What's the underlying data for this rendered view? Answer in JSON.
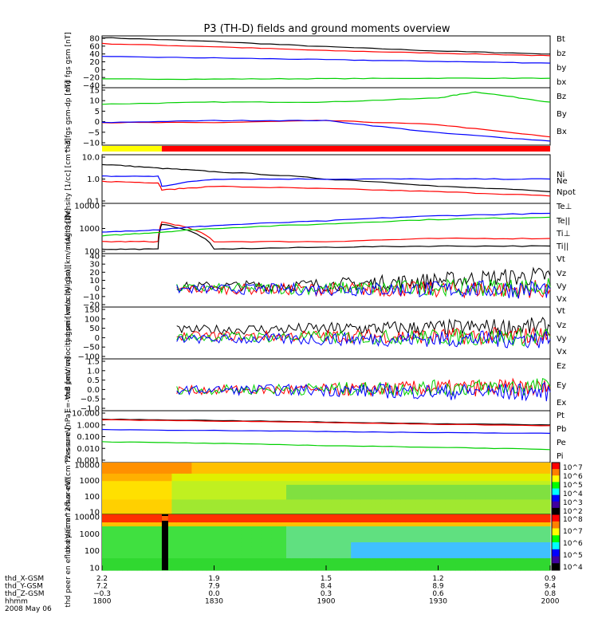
{
  "title": "P3 (TH-D) fields and ground moments overview",
  "colors": {
    "black": "#000000",
    "red": "#ff0000",
    "green": "#00d000",
    "blue": "#0000ff",
    "yellow": "#ffff00"
  },
  "chart_data": [
    {
      "type": "line",
      "title": "",
      "ylabel": "thd fgs gsm [nT]",
      "ylim": [
        -40,
        80
      ],
      "yticks": [
        "80",
        "60",
        "40",
        "20",
        "0",
        "−20",
        "−40"
      ],
      "yscale": "linear",
      "series": [
        {
          "name": "Bt",
          "color": "#000000",
          "x": [
            0,
            30,
            60,
            90,
            120
          ],
          "y": [
            76,
            67,
            55,
            45,
            38
          ]
        },
        {
          "name": "bz",
          "color": "#ff0000",
          "x": [
            0,
            30,
            60,
            90,
            120
          ],
          "y": [
            62,
            55,
            46,
            40,
            34
          ]
        },
        {
          "name": "by",
          "color": "#00d000",
          "x": [
            0,
            30,
            60,
            90,
            120
          ],
          "y": [
            -20,
            -20,
            -19,
            -18,
            -18
          ]
        },
        {
          "name": "bx",
          "color": "#0000ff",
          "x": [
            0,
            30,
            60,
            90,
            120
          ],
          "y": [
            32,
            29,
            25,
            21,
            17
          ]
        }
      ]
    },
    {
      "type": "line",
      "title": "",
      "ylabel": "thd fgs gsm-dp [nT]",
      "ylim": [
        -12,
        16
      ],
      "yticks": [
        "15",
        "10",
        "5",
        "0",
        "−5",
        "−10"
      ],
      "yscale": "linear",
      "series": [
        {
          "name": "Bz",
          "color": "#00d000",
          "x": [
            0,
            30,
            60,
            90,
            100,
            120
          ],
          "y": [
            8,
            9,
            9,
            11,
            14,
            9
          ]
        },
        {
          "name": "By",
          "color": "#ff0000",
          "x": [
            0,
            30,
            60,
            90,
            120
          ],
          "y": [
            -1,
            -1,
            0,
            -2,
            -8
          ]
        },
        {
          "name": "Bx",
          "color": "#0000ff",
          "x": [
            0,
            30,
            60,
            90,
            120
          ],
          "y": [
            -1,
            0,
            0,
            -6,
            -10
          ]
        }
      ]
    },
    {
      "type": "line",
      "title": "",
      "ylabel": "Density [1/cc] [cm^-3]",
      "ylim": [
        0.1,
        10
      ],
      "yticks": [
        "10.0",
        "1.0",
        "0.1"
      ],
      "yscale": "log",
      "series": [
        {
          "name": "Ne",
          "color": "#000000",
          "x": [
            0,
            15,
            30,
            60,
            90,
            120
          ],
          "y": [
            4,
            2.8,
            2.0,
            1.0,
            0.5,
            0.3
          ]
        },
        {
          "name": "Ni",
          "color": "#ff0000",
          "x": [
            0,
            15,
            16,
            30,
            60,
            90,
            120
          ],
          "y": [
            0.8,
            0.7,
            0.35,
            0.5,
            0.4,
            0.3,
            0.2
          ]
        },
        {
          "name": "Npot",
          "color": "#0000ff",
          "x": [
            0,
            15,
            16,
            30,
            60,
            90,
            120
          ],
          "y": [
            1.3,
            1.3,
            0.5,
            1.0,
            1.0,
            1.0,
            1.0
          ]
        }
      ]
    },
    {
      "type": "line",
      "title": "",
      "ylabel": "magt3 [eV]",
      "ylim": [
        100,
        10000
      ],
      "yticks": [
        "10000",
        "1000",
        "100"
      ],
      "yscale": "log",
      "series": [
        {
          "name": "Te⊥",
          "color": "#ff0000",
          "x": [
            0,
            15,
            16,
            30,
            60,
            90,
            120
          ],
          "y": [
            300,
            300,
            1800,
            300,
            300,
            400,
            400
          ]
        },
        {
          "name": "Te||",
          "color": "#000000",
          "x": [
            0,
            15,
            16,
            30,
            60,
            90,
            120
          ],
          "y": [
            150,
            150,
            1500,
            150,
            180,
            200,
            200
          ]
        },
        {
          "name": "Ti⊥",
          "color": "#0000ff",
          "x": [
            0,
            15,
            30,
            60,
            90,
            120
          ],
          "y": [
            700,
            900,
            1300,
            2000,
            3200,
            4000
          ]
        },
        {
          "name": "Ti||",
          "color": "#00d000",
          "x": [
            0,
            15,
            30,
            60,
            90,
            120
          ],
          "y": [
            500,
            700,
            1000,
            1500,
            2300,
            2800
          ]
        }
      ]
    },
    {
      "type": "line",
      "title": "",
      "ylabel": "thd peir velocity gsm [km/s (All Qs)]",
      "ylim": [
        -20,
        40
      ],
      "yticks": [
        "40",
        "30",
        "20",
        "10",
        "0",
        "−10",
        "−20"
      ],
      "yscale": "linear",
      "series": [
        {
          "name": "Vt",
          "color": "#000000",
          "x": [
            20,
            60,
            90,
            120
          ],
          "y": [
            3,
            5,
            10,
            15
          ]
        },
        {
          "name": "Vz",
          "color": "#ff0000",
          "x": [
            20,
            60,
            90,
            120
          ],
          "y": [
            0,
            0,
            0,
            0
          ]
        },
        {
          "name": "Vy",
          "color": "#00d000",
          "x": [
            20,
            60,
            90,
            120
          ],
          "y": [
            1,
            1,
            2,
            2
          ]
        },
        {
          "name": "Vx",
          "color": "#0000ff",
          "x": [
            20,
            60,
            90,
            120
          ],
          "y": [
            0,
            0,
            0,
            0
          ]
        }
      ]
    },
    {
      "type": "line",
      "title": "",
      "ylabel": "thd peer velocity gsm [km/s (All Qs)]",
      "ylim": [
        -100,
        150
      ],
      "yticks": [
        "150",
        "100",
        "50",
        "0",
        "−50",
        "−100"
      ],
      "yscale": "linear",
      "series": [
        {
          "name": "Vt",
          "color": "#000000",
          "x": [
            20,
            60,
            90,
            120
          ],
          "y": [
            40,
            45,
            50,
            55
          ]
        },
        {
          "name": "Vz",
          "color": "#ff0000",
          "x": [
            20,
            60,
            90,
            120
          ],
          "y": [
            10,
            10,
            10,
            10
          ]
        },
        {
          "name": "Vy",
          "color": "#00d000",
          "x": [
            20,
            60,
            90,
            120
          ],
          "y": [
            5,
            5,
            5,
            5
          ]
        },
        {
          "name": "Vx",
          "color": "#0000ff",
          "x": [
            20,
            60,
            90,
            120
          ],
          "y": [
            -5,
            -5,
            -5,
            -5
          ]
        }
      ]
    },
    {
      "type": "line",
      "title": "",
      "ylabel": "E=-VxB [mV/m]",
      "ylim": [
        -1.0,
        1.5
      ],
      "yticks": [
        "1.5",
        "1.0",
        "0.5",
        "0.0",
        "−0.5",
        "−1.0"
      ],
      "yscale": "linear",
      "series": [
        {
          "name": "Ez",
          "color": "#ff0000",
          "x": [
            20,
            60,
            90,
            120
          ],
          "y": [
            0,
            0,
            0.1,
            0.1
          ]
        },
        {
          "name": "Ey",
          "color": "#00d000",
          "x": [
            20,
            60,
            90,
            120
          ],
          "y": [
            0,
            0.05,
            0.1,
            0.15
          ]
        },
        {
          "name": "Ex",
          "color": "#0000ff",
          "x": [
            20,
            60,
            90,
            120
          ],
          "y": [
            0,
            0,
            -0.1,
            -0.1
          ]
        }
      ]
    },
    {
      "type": "line",
      "title": "",
      "ylabel": "Pressure [nPa]",
      "ylim": [
        0.001,
        10
      ],
      "yticks": [
        "10.000",
        "1.000",
        "0.100",
        "0.010",
        "0.001"
      ],
      "yscale": "log",
      "series": [
        {
          "name": "Pt",
          "color": "#000000",
          "x": [
            0,
            30,
            60,
            90,
            120
          ],
          "y": [
            2.2,
            1.8,
            1.3,
            1.0,
            0.8
          ]
        },
        {
          "name": "Pb",
          "color": "#ff0000",
          "x": [
            0,
            30,
            60,
            90,
            120
          ],
          "y": [
            2.0,
            1.6,
            1.2,
            0.9,
            0.7
          ]
        },
        {
          "name": "Pe",
          "color": "#00d000",
          "x": [
            0,
            30,
            60,
            90,
            120
          ],
          "y": [
            0.04,
            0.03,
            0.02,
            0.015,
            0.01
          ]
        },
        {
          "name": "Pi",
          "color": "#0000ff",
          "x": [
            0,
            30,
            60,
            90,
            120
          ],
          "y": [
            0.35,
            0.3,
            0.25,
            0.2,
            0.18
          ]
        }
      ]
    },
    {
      "type": "heatmap",
      "title": "",
      "ylabel": "thd peir en eflux eV/(cm^2-s-sr-eV)",
      "ylim": [
        5,
        20000
      ],
      "yticks": [
        "10000",
        "1000",
        "100",
        "10"
      ],
      "yscale": "log",
      "colorbar_ticks": [
        "10^7",
        "10^6",
        "10^5",
        "10^4",
        "10^3",
        "10^2"
      ]
    },
    {
      "type": "heatmap",
      "title": "",
      "ylabel": "thd peer en eflux eV/(cm^2-s-sr-eV)",
      "ylim": [
        5,
        20000
      ],
      "yticks": [
        "10000",
        "1000",
        "100",
        "10"
      ],
      "yscale": "log",
      "colorbar_ticks": [
        "10^8",
        "10^7",
        "10^6",
        "10^5",
        "10^4"
      ]
    }
  ],
  "x_axis": {
    "ticks_min": [
      0,
      30,
      60,
      90,
      120
    ],
    "rows": [
      {
        "label": "thd_X-GSM",
        "values": [
          "2.2",
          "1.9",
          "1.5",
          "1.2",
          "0.9"
        ]
      },
      {
        "label": "thd_Y-GSM",
        "values": [
          "7.2",
          "7.9",
          "8.4",
          "8.9",
          "9.4"
        ]
      },
      {
        "label": "thd_Z-GSM",
        "values": [
          "−0.3",
          "0.0",
          "0.3",
          "0.6",
          "0.8"
        ]
      },
      {
        "label": "hhmm",
        "values": [
          "1800",
          "1830",
          "1900",
          "1930",
          "2000"
        ]
      }
    ],
    "date": "2008 May 06"
  },
  "status_bar": {
    "segments": [
      {
        "from": 0,
        "to": 16,
        "color": "#ffff00"
      },
      {
        "from": 16,
        "to": 120,
        "color": "#ff0000"
      }
    ]
  }
}
